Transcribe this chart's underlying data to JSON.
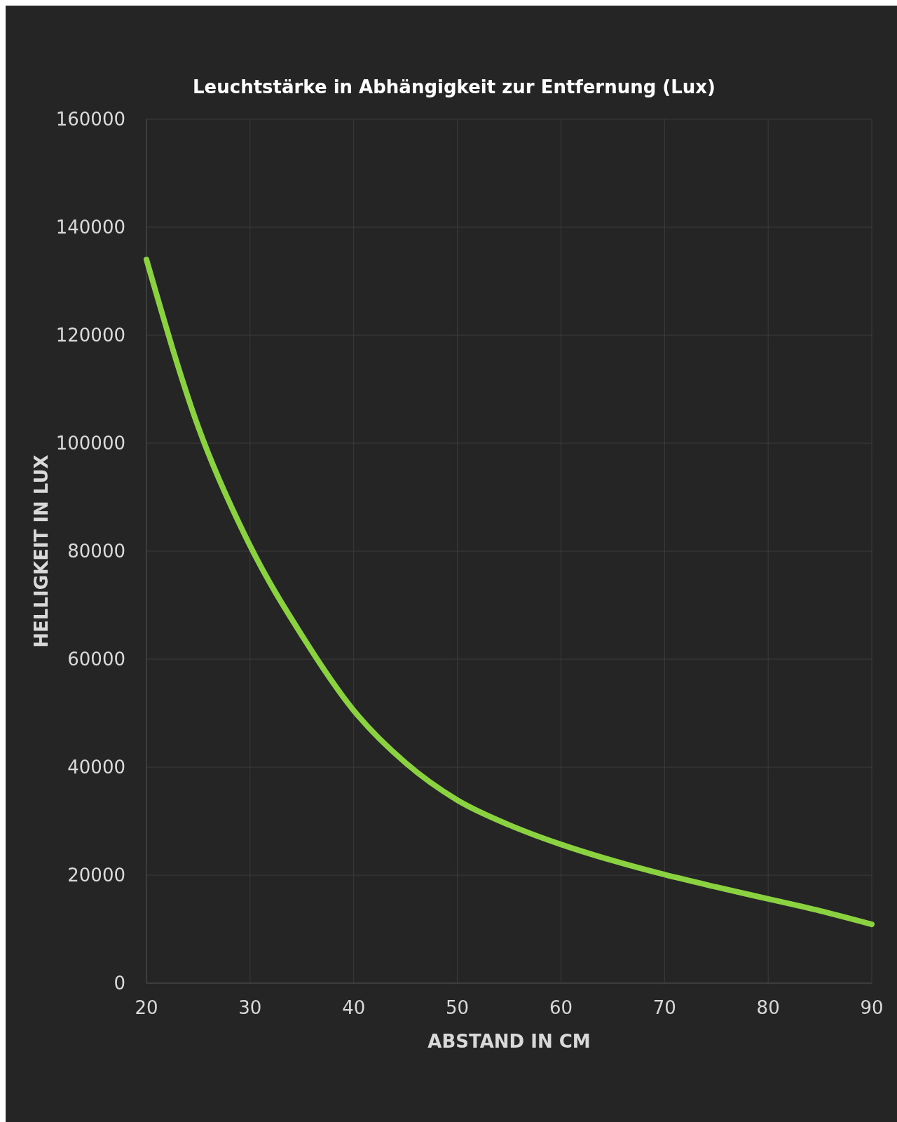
{
  "chart_data": {
    "type": "line",
    "title": "Leuchtstärke in Abhängigkeit zur Entfernung (Lux)",
    "xlabel": "ABSTAND IN CM",
    "ylabel": "HELLIGKEIT IN LUX",
    "x": [
      20,
      25,
      30,
      35,
      40,
      45,
      50,
      55,
      60,
      65,
      70,
      75,
      80,
      85,
      90
    ],
    "series": [
      {
        "color": "#8bd241",
        "values": [
          134000,
          103000,
          81000,
          64400,
          50500,
          40800,
          33900,
          29300,
          25700,
          22700,
          20100,
          17800,
          15600,
          13400,
          10900
        ]
      }
    ],
    "xlim": [
      20,
      90
    ],
    "xticks": [
      20,
      30,
      40,
      50,
      60,
      70,
      80,
      90
    ],
    "ylim": [
      0,
      160000
    ],
    "yticks": [
      0,
      20000,
      40000,
      60000,
      80000,
      100000,
      120000,
      140000,
      160000
    ],
    "grid": true,
    "marker": "none",
    "line_style": "solid"
  }
}
